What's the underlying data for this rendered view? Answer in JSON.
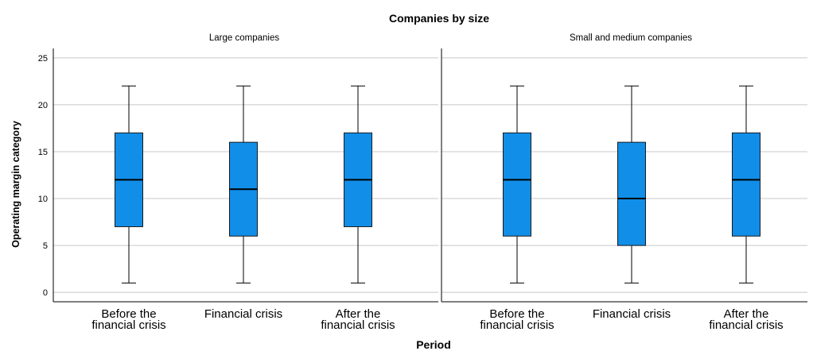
{
  "chart_data": {
    "type": "boxplot",
    "title": "Companies by size",
    "xlabel": "Period",
    "ylabel": "Operating margin category",
    "ylim": [
      -1,
      26
    ],
    "yticks": [
      0,
      5,
      10,
      15,
      20,
      25
    ],
    "grid": true,
    "box_color": "#118ee8",
    "categories": [
      [
        "Before the",
        "financial crisis"
      ],
      [
        "Financial crisis"
      ],
      [
        "After the",
        "financial crisis"
      ]
    ],
    "panels": [
      {
        "name": "Large companies",
        "boxes": [
          {
            "min": 1,
            "q1": 7,
            "median": 12,
            "q3": 17,
            "max": 22
          },
          {
            "min": 1,
            "q1": 6,
            "median": 11,
            "q3": 16,
            "max": 22
          },
          {
            "min": 1,
            "q1": 7,
            "median": 12,
            "q3": 17,
            "max": 22
          }
        ]
      },
      {
        "name": "Small and medium companies",
        "boxes": [
          {
            "min": 1,
            "q1": 6,
            "median": 12,
            "q3": 17,
            "max": 22
          },
          {
            "min": 1,
            "q1": 5,
            "median": 10,
            "q3": 16,
            "max": 22
          },
          {
            "min": 1,
            "q1": 6,
            "median": 12,
            "q3": 17,
            "max": 22
          }
        ]
      }
    ]
  }
}
